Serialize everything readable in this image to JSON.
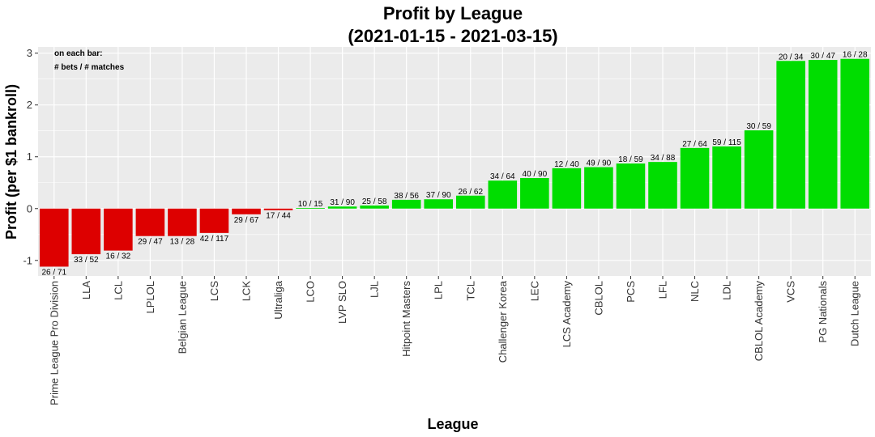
{
  "chart_data": {
    "type": "bar",
    "title": "Profit by League",
    "subtitle": "(2021-01-15 - 2021-03-15)",
    "xlabel": "League",
    "ylabel": "Profit (per $1 bankroll)",
    "ylim": [
      -1.3,
      3.12
    ],
    "yticks": [
      -1,
      0,
      1,
      2,
      3
    ],
    "grid": true,
    "legend": "none",
    "note_lines": [
      "on each bar:",
      "# bets / # matches"
    ],
    "colors": {
      "positive": "#00dd00",
      "negative": "#dd0000",
      "panel": "#ebebeb",
      "grid": "#ffffff"
    },
    "categories": [
      "Prime League Pro Division",
      "LLA",
      "LCL",
      "LPLOL",
      "Belgian League",
      "LCS",
      "LCK",
      "Ultraliga",
      "LCO",
      "LVP SLO",
      "LJL",
      "Hitpoint Masters",
      "LPL",
      "TCL",
      "Challenger Korea",
      "LEC",
      "LCS Academy",
      "CBLOL",
      "PCS",
      "LFL",
      "NLC",
      "LDL",
      "CBLOL Academy",
      "VCS",
      "PG Nationals",
      "Dutch League"
    ],
    "values": [
      -1.12,
      -0.88,
      -0.81,
      -0.53,
      -0.53,
      -0.47,
      -0.11,
      -0.03,
      0.01,
      0.04,
      0.06,
      0.17,
      0.18,
      0.25,
      0.54,
      0.59,
      0.78,
      0.8,
      0.87,
      0.9,
      1.17,
      1.2,
      1.51,
      2.85,
      2.87,
      2.89
    ],
    "labels": [
      "26 / 71",
      "33 / 52",
      "16 / 32",
      "29 / 47",
      "13 / 28",
      "42 / 117",
      "29 / 67",
      "17 / 44",
      "10 / 15",
      "31 / 90",
      "25 / 58",
      "38 / 56",
      "37 / 90",
      "26 / 62",
      "34 / 64",
      "40 / 90",
      "12 / 40",
      "49 / 90",
      "18 / 59",
      "34 / 88",
      "27 / 64",
      "59 / 115",
      "30 / 59",
      "20 / 34",
      "30 / 47",
      "16 / 28"
    ]
  }
}
